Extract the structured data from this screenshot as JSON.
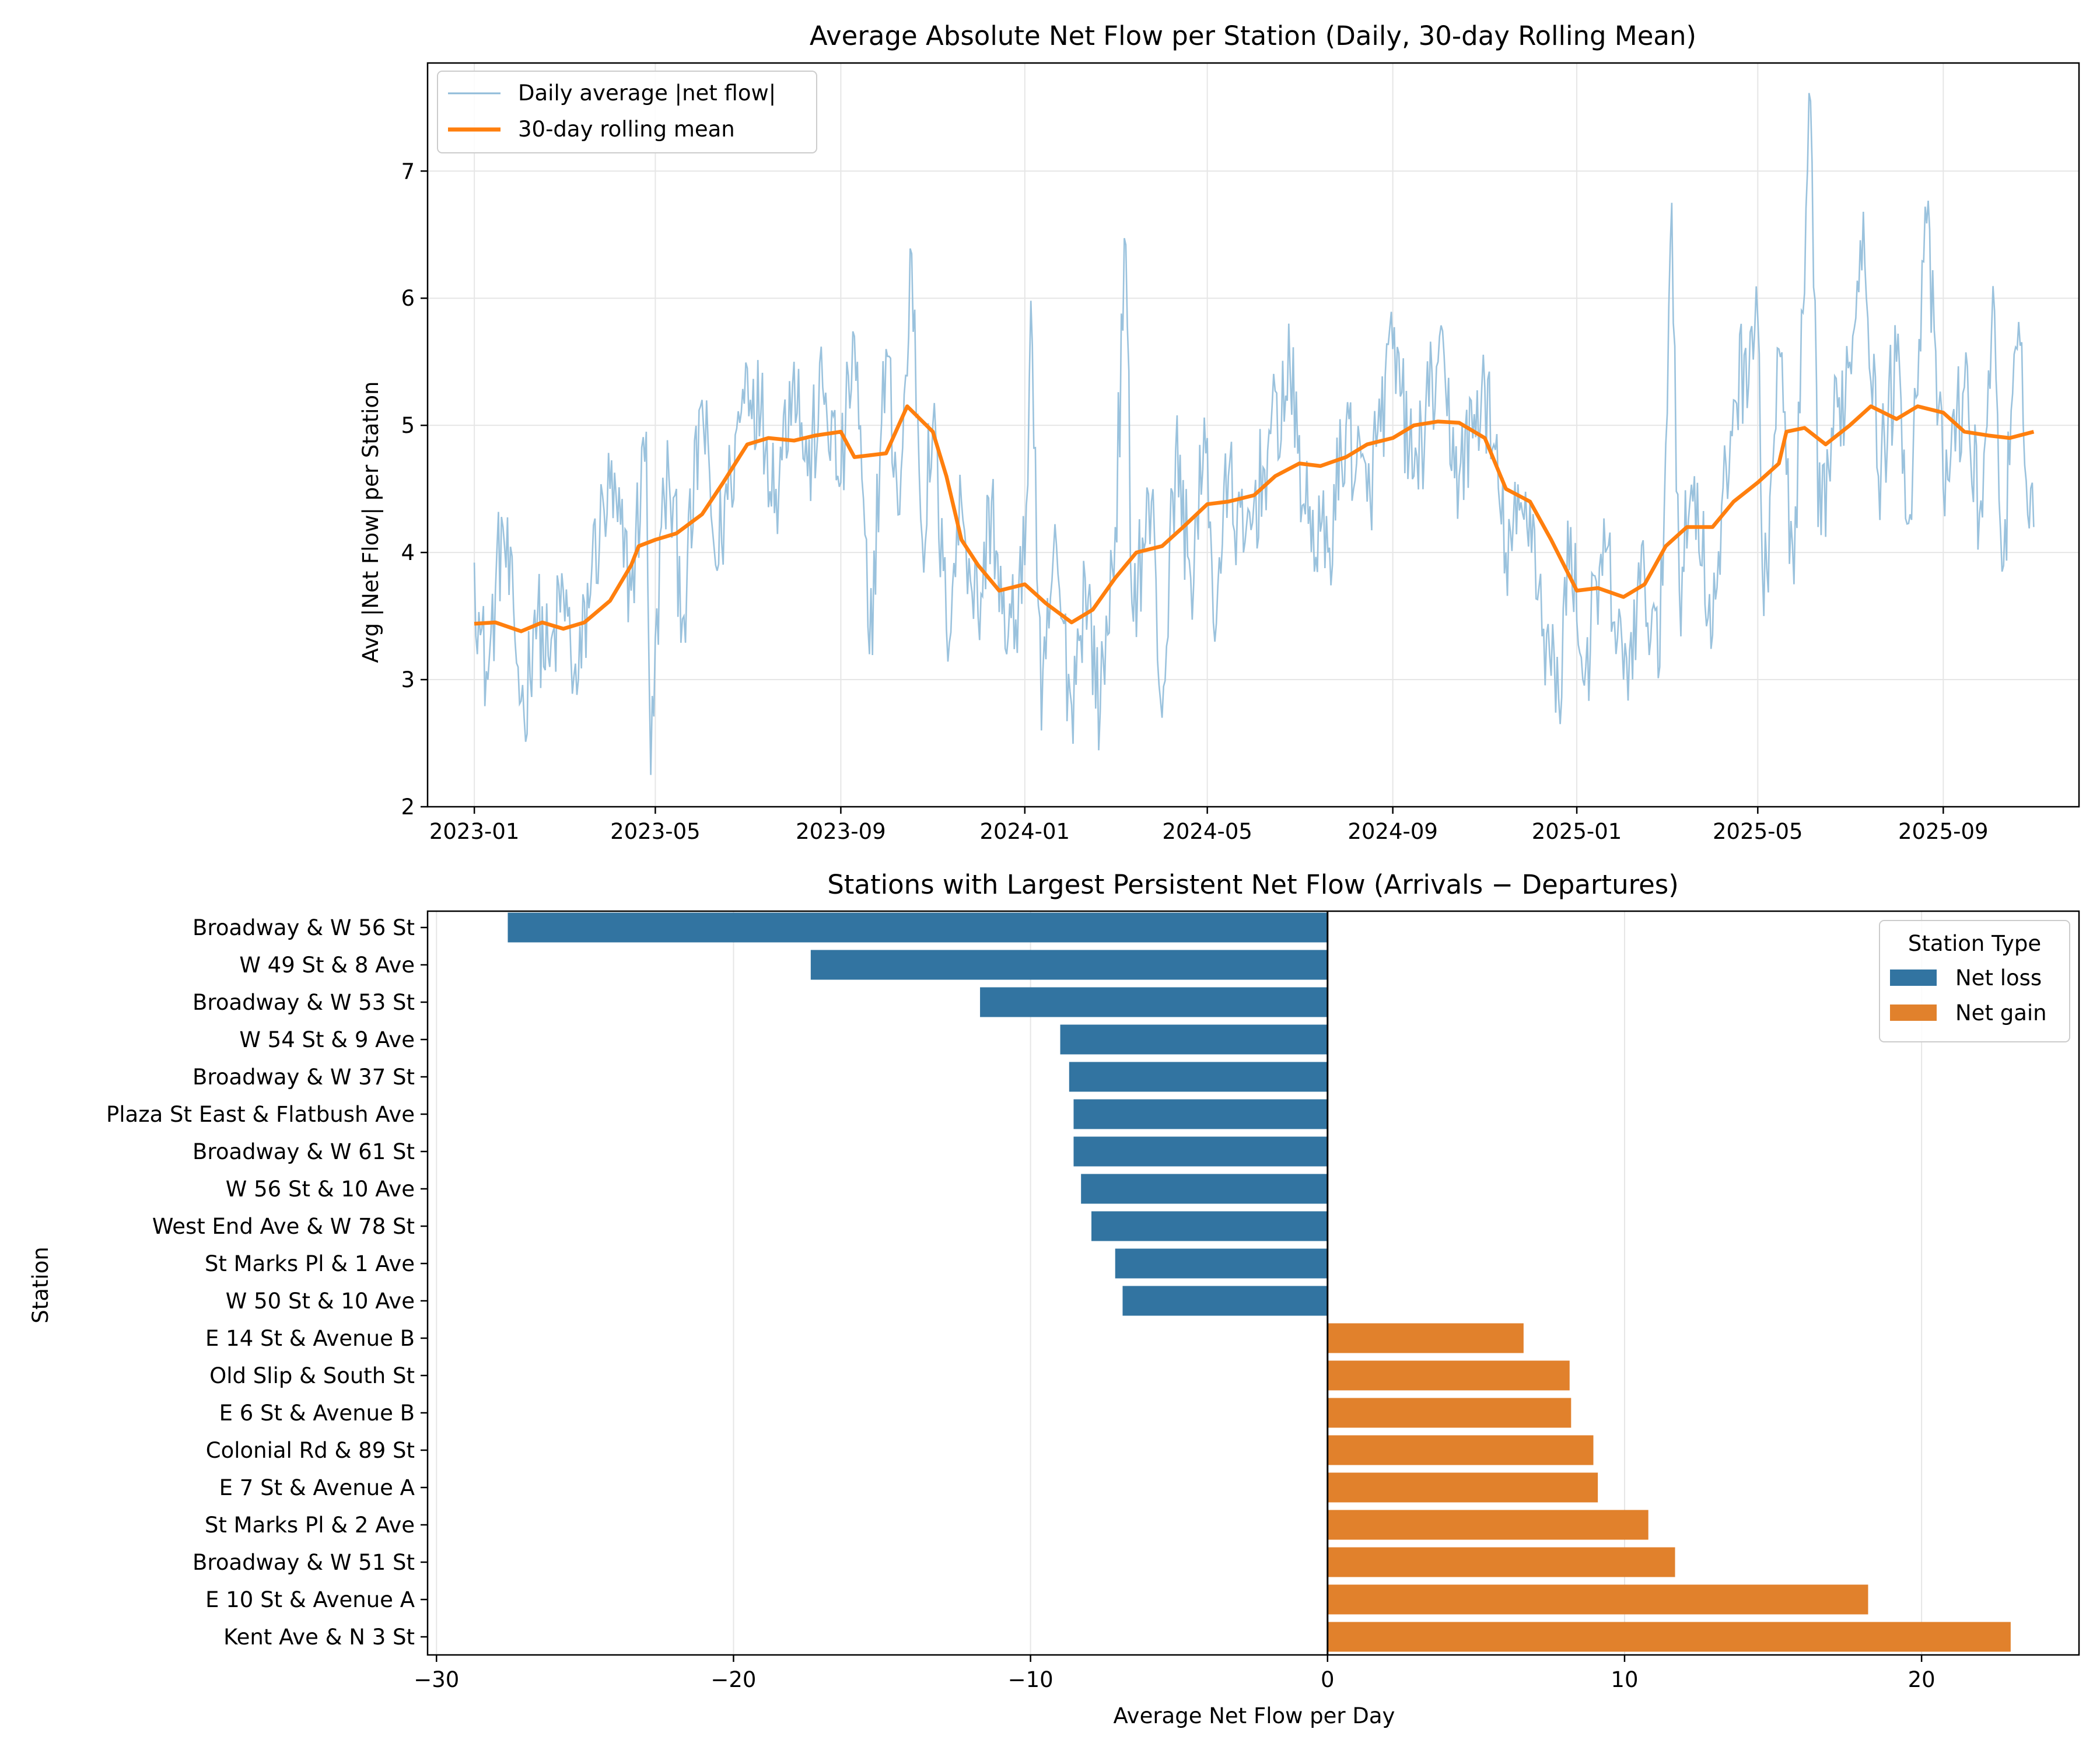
{
  "chart_data": [
    {
      "type": "line",
      "title": "Average Absolute Net Flow per Station (Daily, 30-day Rolling Mean)",
      "xlabel": "",
      "ylabel": "Avg |Net Flow| per Station",
      "xlim": [
        "2022-12-01",
        "2025-11-30"
      ],
      "ylim": [
        2,
        7.85
      ],
      "x_ticks": [
        "2023-01",
        "2023-05",
        "2023-09",
        "2024-01",
        "2024-05",
        "2024-09",
        "2025-01",
        "2025-05",
        "2025-09"
      ],
      "y_ticks": [
        "2",
        "3",
        "4",
        "5",
        "6",
        "7"
      ],
      "grid": true,
      "legend_position": "upper-left",
      "colors": {
        "daily": "#8fbbd9",
        "rolling": "#ff7f0e"
      },
      "series": [
        {
          "name": "Daily average |net flow|",
          "style": "thin",
          "note": "noisy daily series plotted from 2023-01-01 to 2025-10-31",
          "points": [
            [
              "2023-01-01",
              3.92
            ],
            [
              "2023-01-05",
              3.35
            ],
            [
              "2023-01-10",
              3.0
            ],
            [
              "2023-01-15",
              3.7
            ],
            [
              "2023-01-20",
              4.2
            ],
            [
              "2023-01-28",
              3.3
            ],
            [
              "2023-02-03",
              2.7
            ],
            [
              "2023-02-10",
              3.55
            ],
            [
              "2023-02-20",
              3.1
            ],
            [
              "2023-03-01",
              3.7
            ],
            [
              "2023-03-10",
              2.88
            ],
            [
              "2023-03-20",
              3.9
            ],
            [
              "2023-04-01",
              4.5
            ],
            [
              "2023-04-15",
              3.7
            ],
            [
              "2023-04-25",
              4.95
            ],
            [
              "2023-04-28",
              2.25
            ],
            [
              "2023-05-05",
              4.2
            ],
            [
              "2023-05-10",
              4.6
            ],
            [
              "2023-05-20",
              3.5
            ],
            [
              "2023-06-01",
              5.2
            ],
            [
              "2023-06-10",
              3.9
            ],
            [
              "2023-06-20",
              4.6
            ],
            [
              "2023-07-01",
              5.45
            ],
            [
              "2023-07-10",
              5.1
            ],
            [
              "2023-07-20",
              4.5
            ],
            [
              "2023-08-01",
              5.5
            ],
            [
              "2023-08-10",
              4.6
            ],
            [
              "2023-08-20",
              5.3
            ],
            [
              "2023-09-01",
              4.55
            ],
            [
              "2023-09-10",
              5.7
            ],
            [
              "2023-09-20",
              3.2
            ],
            [
              "2023-10-01",
              5.6
            ],
            [
              "2023-10-10",
              4.3
            ],
            [
              "2023-10-18",
              6.35
            ],
            [
              "2023-10-25",
              4.1
            ],
            [
              "2023-11-01",
              5.0
            ],
            [
              "2023-11-10",
              3.4
            ],
            [
              "2023-11-20",
              4.4
            ],
            [
              "2023-12-01",
              3.5
            ],
            [
              "2023-12-10",
              4.4
            ],
            [
              "2023-12-20",
              3.2
            ],
            [
              "2024-01-01",
              3.9
            ],
            [
              "2024-01-05",
              5.98
            ],
            [
              "2024-01-12",
              2.6
            ],
            [
              "2024-01-20",
              4.0
            ],
            [
              "2024-02-01",
              2.8
            ],
            [
              "2024-02-10",
              3.8
            ],
            [
              "2024-02-20",
              2.75
            ],
            [
              "2024-03-01",
              4.2
            ],
            [
              "2024-03-08",
              6.42
            ],
            [
              "2024-03-12",
              3.6
            ],
            [
              "2024-03-25",
              4.4
            ],
            [
              "2024-04-01",
              2.7
            ],
            [
              "2024-04-10",
              4.8
            ],
            [
              "2024-04-20",
              3.8
            ],
            [
              "2024-05-01",
              4.9
            ],
            [
              "2024-05-05",
              3.45
            ],
            [
              "2024-05-15",
              4.6
            ],
            [
              "2024-05-25",
              4.0
            ],
            [
              "2024-06-10",
              4.8
            ],
            [
              "2024-06-25",
              5.4
            ],
            [
              "2024-07-05",
              4.3
            ],
            [
              "2024-07-20",
              4.0
            ],
            [
              "2024-08-01",
              5.0
            ],
            [
              "2024-08-15",
              4.4
            ],
            [
              "2024-09-01",
              5.6
            ],
            [
              "2024-09-15",
              4.6
            ],
            [
              "2024-10-01",
              5.5
            ],
            [
              "2024-10-15",
              4.6
            ],
            [
              "2024-11-01",
              5.3
            ],
            [
              "2024-11-15",
              4.0
            ],
            [
              "2024-12-01",
              4.4
            ],
            [
              "2024-12-10",
              3.4
            ],
            [
              "2024-12-20",
              2.85
            ],
            [
              "2024-12-28",
              4.2
            ],
            [
              "2025-01-05",
              3.0
            ],
            [
              "2025-01-20",
              4.0
            ],
            [
              "2025-02-01",
              3.0
            ],
            [
              "2025-02-15",
              3.8
            ],
            [
              "2025-02-25",
              3.1
            ],
            [
              "2025-03-05",
              6.75
            ],
            [
              "2025-03-10",
              3.7
            ],
            [
              "2025-03-20",
              4.6
            ],
            [
              "2025-04-01",
              3.35
            ],
            [
              "2025-04-15",
              5.2
            ],
            [
              "2025-05-01",
              5.85
            ],
            [
              "2025-05-05",
              3.5
            ],
            [
              "2025-05-15",
              5.6
            ],
            [
              "2025-05-25",
              3.75
            ],
            [
              "2025-06-05",
              7.55
            ],
            [
              "2025-06-10",
              4.2
            ],
            [
              "2025-06-20",
              4.9
            ],
            [
              "2025-07-01",
              5.5
            ],
            [
              "2025-07-10",
              6.68
            ],
            [
              "2025-07-20",
              4.6
            ],
            [
              "2025-08-01",
              5.5
            ],
            [
              "2025-08-10",
              4.3
            ],
            [
              "2025-08-20",
              6.72
            ],
            [
              "2025-09-01",
              4.5
            ],
            [
              "2025-09-15",
              5.3
            ],
            [
              "2025-09-25",
              4.3
            ],
            [
              "2025-10-05",
              5.9
            ],
            [
              "2025-10-10",
              3.85
            ],
            [
              "2025-10-20",
              5.6
            ],
            [
              "2025-10-31",
              4.2
            ]
          ]
        },
        {
          "name": "30-day rolling mean",
          "style": "thick",
          "points": [
            [
              "2023-01-01",
              3.44
            ],
            [
              "2023-01-15",
              3.45
            ],
            [
              "2023-02-01",
              3.38
            ],
            [
              "2023-02-15",
              3.45
            ],
            [
              "2023-03-01",
              3.4
            ],
            [
              "2023-03-15",
              3.45
            ],
            [
              "2023-04-01",
              3.62
            ],
            [
              "2023-04-15",
              3.9
            ],
            [
              "2023-04-20",
              4.05
            ],
            [
              "2023-05-01",
              4.1
            ],
            [
              "2023-05-15",
              4.15
            ],
            [
              "2023-06-01",
              4.3
            ],
            [
              "2023-06-15",
              4.55
            ],
            [
              "2023-07-01",
              4.85
            ],
            [
              "2023-07-15",
              4.9
            ],
            [
              "2023-08-01",
              4.88
            ],
            [
              "2023-08-15",
              4.92
            ],
            [
              "2023-09-01",
              4.95
            ],
            [
              "2023-09-10",
              4.75
            ],
            [
              "2023-10-01",
              4.78
            ],
            [
              "2023-10-15",
              5.15
            ],
            [
              "2023-11-01",
              4.95
            ],
            [
              "2023-11-10",
              4.6
            ],
            [
              "2023-11-20",
              4.1
            ],
            [
              "2023-12-01",
              3.9
            ],
            [
              "2023-12-15",
              3.7
            ],
            [
              "2024-01-01",
              3.75
            ],
            [
              "2024-01-15",
              3.6
            ],
            [
              "2024-02-01",
              3.45
            ],
            [
              "2024-02-15",
              3.55
            ],
            [
              "2024-03-01",
              3.8
            ],
            [
              "2024-03-15",
              4.0
            ],
            [
              "2024-04-01",
              4.05
            ],
            [
              "2024-04-15",
              4.2
            ],
            [
              "2024-05-01",
              4.38
            ],
            [
              "2024-05-15",
              4.4
            ],
            [
              "2024-06-01",
              4.45
            ],
            [
              "2024-06-15",
              4.6
            ],
            [
              "2024-07-01",
              4.7
            ],
            [
              "2024-07-15",
              4.68
            ],
            [
              "2024-08-01",
              4.75
            ],
            [
              "2024-08-15",
              4.85
            ],
            [
              "2024-09-01",
              4.9
            ],
            [
              "2024-09-15",
              5.0
            ],
            [
              "2024-10-01",
              5.03
            ],
            [
              "2024-10-15",
              5.02
            ],
            [
              "2024-11-01",
              4.9
            ],
            [
              "2024-11-15",
              4.5
            ],
            [
              "2024-12-01",
              4.4
            ],
            [
              "2024-12-15",
              4.1
            ],
            [
              "2025-01-01",
              3.7
            ],
            [
              "2025-01-15",
              3.72
            ],
            [
              "2025-02-01",
              3.65
            ],
            [
              "2025-02-15",
              3.75
            ],
            [
              "2025-03-01",
              4.05
            ],
            [
              "2025-03-15",
              4.2
            ],
            [
              "2025-04-01",
              4.2
            ],
            [
              "2025-04-15",
              4.4
            ],
            [
              "2025-05-01",
              4.55
            ],
            [
              "2025-05-15",
              4.7
            ],
            [
              "2025-05-20",
              4.95
            ],
            [
              "2025-06-01",
              4.98
            ],
            [
              "2025-06-15",
              4.85
            ],
            [
              "2025-07-01",
              5.0
            ],
            [
              "2025-07-15",
              5.15
            ],
            [
              "2025-08-01",
              5.05
            ],
            [
              "2025-08-15",
              5.15
            ],
            [
              "2025-09-01",
              5.1
            ],
            [
              "2025-09-15",
              4.95
            ],
            [
              "2025-10-01",
              4.92
            ],
            [
              "2025-10-15",
              4.9
            ],
            [
              "2025-10-31",
              4.95
            ]
          ]
        }
      ]
    },
    {
      "type": "bar",
      "orientation": "horizontal",
      "title": "Stations with Largest Persistent Net Flow (Arrivals − Departures)",
      "xlabel": "Average Net Flow per Day",
      "ylabel": "Station",
      "xlim": [
        -30.3,
        25.3
      ],
      "x_ticks": [
        -30,
        -20,
        -10,
        0,
        10,
        20
      ],
      "x_tick_labels": [
        "−30",
        "−20",
        "−10",
        "0",
        "10",
        "20"
      ],
      "grid": true,
      "legend_position": "upper-right",
      "legend_title": "Station Type",
      "legend_entries": [
        {
          "label": "Net loss",
          "color": "#3274a1"
        },
        {
          "label": "Net gain",
          "color": "#e1812c"
        }
      ],
      "categories": [
        "Broadway & W 56 St",
        "W 49 St & 8 Ave",
        "Broadway & W 53 St",
        "W 54 St & 9 Ave",
        "Broadway & W 37 St",
        "Plaza St East & Flatbush Ave",
        "Broadway & W 61 St",
        "W 56 St & 10 Ave",
        "West End Ave & W 78 St",
        "St Marks Pl & 1 Ave",
        "W 50 St & 10 Ave",
        "E 14 St & Avenue B",
        "Old Slip & South St",
        "E 6 St & Avenue B",
        "Colonial Rd & 89 St",
        "E 7 St & Avenue A",
        "St Marks Pl & 2 Ave",
        "Broadway & W 51 St",
        "E 10 St & Avenue A",
        "Kent Ave & N 3 St"
      ],
      "values": [
        -27.6,
        -17.4,
        -11.7,
        -9.0,
        -8.7,
        -8.55,
        -8.55,
        -8.3,
        -7.95,
        -7.15,
        -6.9,
        6.6,
        8.15,
        8.2,
        8.95,
        9.1,
        10.8,
        11.7,
        18.2,
        23.0
      ],
      "types": [
        "Net loss",
        "Net loss",
        "Net loss",
        "Net loss",
        "Net loss",
        "Net loss",
        "Net loss",
        "Net loss",
        "Net loss",
        "Net loss",
        "Net loss",
        "Net gain",
        "Net gain",
        "Net gain",
        "Net gain",
        "Net gain",
        "Net gain",
        "Net gain",
        "Net gain",
        "Net gain"
      ]
    }
  ]
}
